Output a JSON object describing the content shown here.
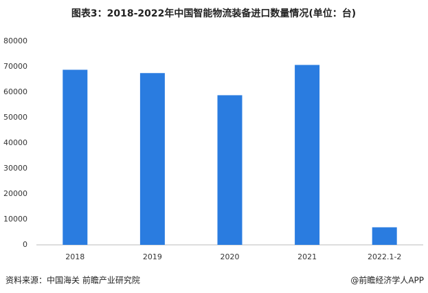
{
  "chart_data": {
    "type": "bar",
    "title": "图表3：2018-2022年中国智能物流装备进口数量情况(单位：台)",
    "categories": [
      "2018",
      "2019",
      "2020",
      "2021",
      "2022.1-2"
    ],
    "values": [
      68800,
      67500,
      58800,
      70700,
      6900
    ],
    "color": "#2a7ce0",
    "ylim": [
      0,
      80000
    ],
    "yticks": [
      0,
      10000,
      20000,
      30000,
      40000,
      50000,
      60000,
      70000,
      80000
    ],
    "grid": false,
    "source": "资料来源：中国海关 前瞻产业研究院",
    "credit": "@前瞻经济学人APP"
  }
}
